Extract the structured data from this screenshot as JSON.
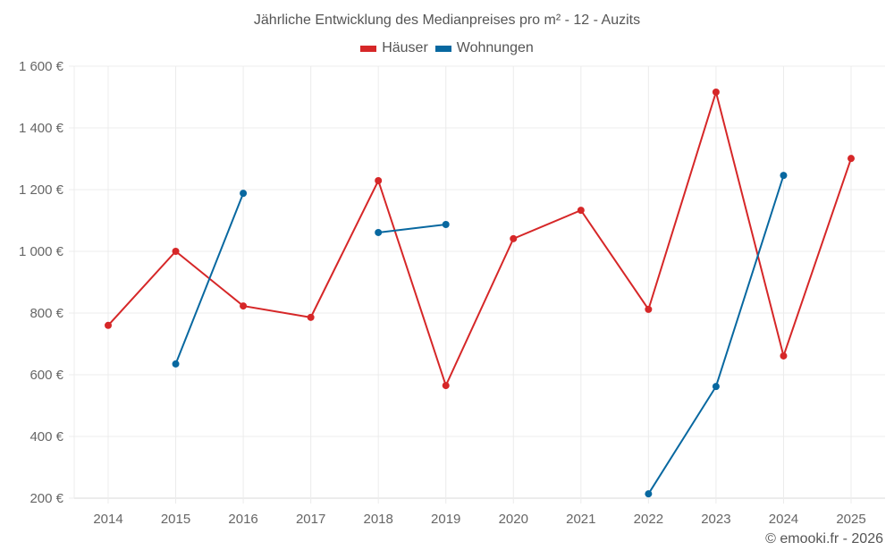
{
  "chart_data": {
    "type": "line",
    "title": "Jährliche Entwicklung des Medianpreises pro m² - 12 - Auzits",
    "xlabel": "",
    "ylabel": "",
    "categories": [
      "2014",
      "2015",
      "2016",
      "2017",
      "2018",
      "2019",
      "2020",
      "2021",
      "2022",
      "2023",
      "2024",
      "2025"
    ],
    "ylim": [
      200,
      1600
    ],
    "yticks": [
      200,
      400,
      600,
      800,
      1000,
      1200,
      1400,
      1600
    ],
    "ytick_labels": [
      "200 €",
      "400 €",
      "600 €",
      "800 €",
      "1 000 €",
      "1 200 €",
      "1 400 €",
      "1 600 €"
    ],
    "grid": true,
    "legend_position": "top",
    "series": [
      {
        "name": "Häuser",
        "color": "#d62728",
        "values": [
          760,
          1000,
          823,
          786,
          1229,
          565,
          1041,
          1133,
          812,
          1516,
          661,
          1301
        ]
      },
      {
        "name": "Wohnungen",
        "color": "#0868a0",
        "values": [
          null,
          635,
          1188,
          null,
          1061,
          1087,
          null,
          null,
          214,
          562,
          1246,
          null
        ]
      }
    ]
  },
  "footer": "© emooki.fr - 2026"
}
